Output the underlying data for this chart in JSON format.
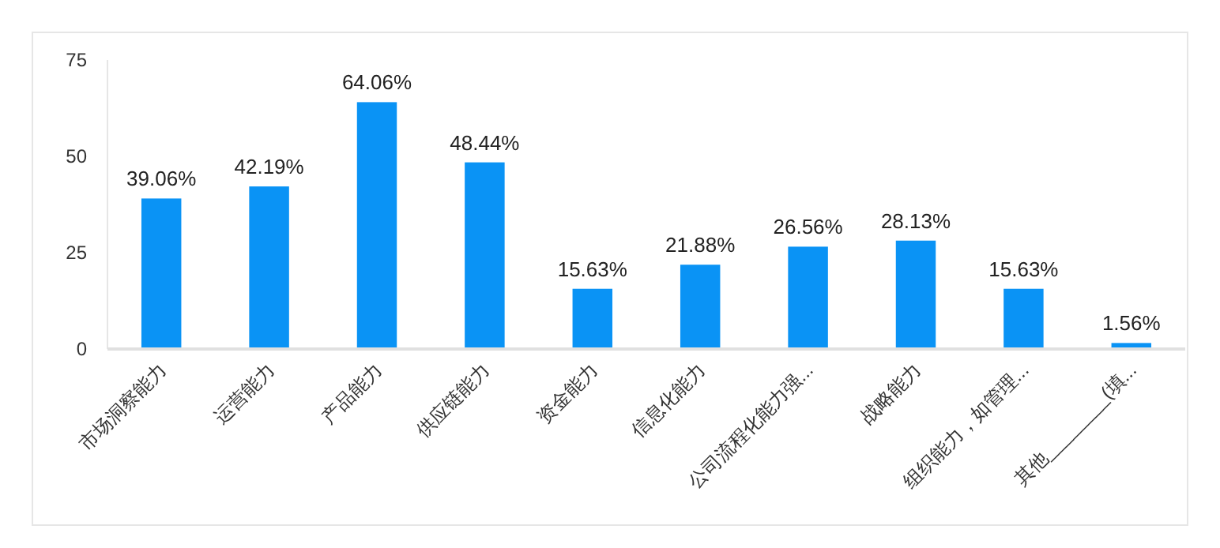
{
  "chart_data": {
    "type": "bar",
    "categories": [
      "市场洞察能力",
      "运营能力",
      "产品能力",
      "供应链能力",
      "资金能力",
      "信息化能力",
      "公司流程化能力强...",
      "战略能力",
      "组织能力，如管理...",
      "其他________(填..."
    ],
    "values": [
      39.06,
      42.19,
      64.06,
      48.44,
      15.63,
      21.88,
      26.56,
      28.13,
      15.63,
      1.56
    ],
    "color": "#0a93f5",
    "ylim": [
      0,
      75
    ],
    "yticks": [
      0,
      25,
      50,
      75
    ],
    "value_labels": [
      "39.06%",
      "42.19%",
      "64.06%",
      "48.44%",
      "15.63%",
      "21.88%",
      "26.56%",
      "28.13%",
      "15.63%",
      "1.56%"
    ]
  }
}
